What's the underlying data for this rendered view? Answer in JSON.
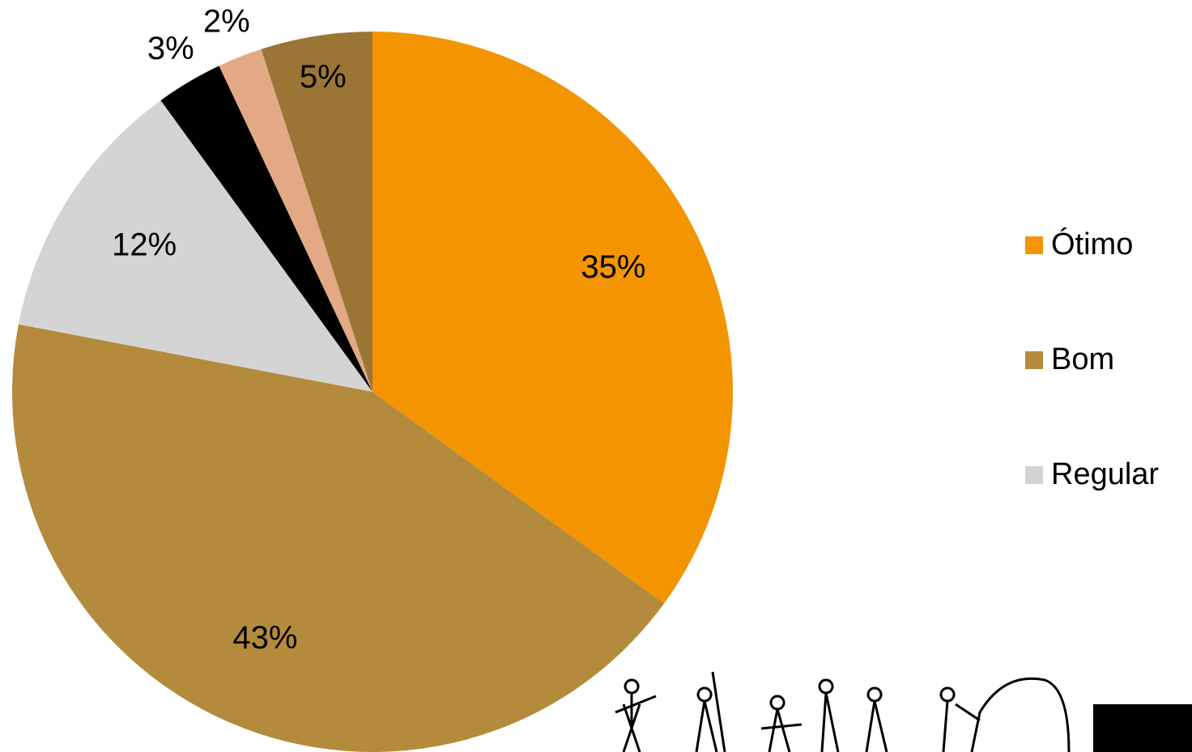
{
  "chart_data": {
    "type": "pie",
    "categories": [
      "Ótimo",
      "Bom",
      "Regular",
      null,
      null,
      null
    ],
    "values": [
      35,
      43,
      12,
      3,
      2,
      5
    ],
    "value_labels": [
      "35%",
      "43%",
      "12%",
      "3%",
      "2%",
      "5%"
    ],
    "colors": [
      "#f39400",
      "#b48b3c",
      "#d4d4d4",
      "#000000",
      "#e3a985",
      "#9a7535"
    ],
    "legend": "right"
  }
}
